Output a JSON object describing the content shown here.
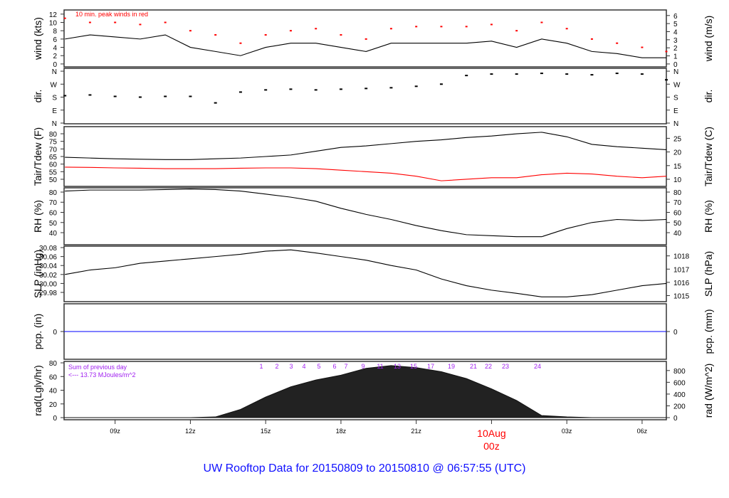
{
  "title": "UW Rooftop Data for 20150809  to  20150810 @ 06:57:55  (UTC)",
  "colors": {
    "line": "#000000",
    "dewpoint": "#ff0000",
    "peak": "#ff0000",
    "pcp": "#0000ff",
    "annot": "#a020f0",
    "title": "#1010ff",
    "date": "#ff0000"
  },
  "chart_data": {
    "type": "line",
    "x_start": "2015-08-09T06:58Z",
    "x_end": "2015-08-10T06:58Z",
    "x_ticks": [
      {
        "t": "2015-08-09T09:00Z",
        "label": "09z"
      },
      {
        "t": "2015-08-09T12:00Z",
        "label": "12z"
      },
      {
        "t": "2015-08-09T15:00Z",
        "label": "15z"
      },
      {
        "t": "2015-08-09T18:00Z",
        "label": "18z"
      },
      {
        "t": "2015-08-09T21:00Z",
        "label": "21z"
      },
      {
        "t": "2015-08-10T00:00Z",
        "label": "00z",
        "date": "10Aug"
      },
      {
        "t": "2015-08-10T03:00Z",
        "label": "03z"
      },
      {
        "t": "2015-08-10T06:00Z",
        "label": "06z"
      }
    ],
    "times": [
      "2015-08-09T07:00Z",
      "2015-08-09T08:00Z",
      "2015-08-09T09:00Z",
      "2015-08-09T10:00Z",
      "2015-08-09T11:00Z",
      "2015-08-09T12:00Z",
      "2015-08-09T13:00Z",
      "2015-08-09T14:00Z",
      "2015-08-09T15:00Z",
      "2015-08-09T16:00Z",
      "2015-08-09T17:00Z",
      "2015-08-09T18:00Z",
      "2015-08-09T19:00Z",
      "2015-08-09T20:00Z",
      "2015-08-09T21:00Z",
      "2015-08-09T22:00Z",
      "2015-08-09T23:00Z",
      "2015-08-10T00:00Z",
      "2015-08-10T01:00Z",
      "2015-08-10T02:00Z",
      "2015-08-10T03:00Z",
      "2015-08-10T04:00Z",
      "2015-08-10T05:00Z",
      "2015-08-10T06:00Z",
      "2015-08-10T06:58Z"
    ],
    "panels": [
      {
        "id": "wind",
        "ylabel": "wind (kts)",
        "ylabel_right": "wind (m/s)",
        "ylim": [
          -0.7,
          13.0
        ],
        "ticks_left": [
          0,
          2,
          4,
          6,
          8,
          10,
          12
        ],
        "ticks_right": [
          0,
          1,
          2,
          3,
          4,
          5,
          6
        ],
        "right_factor": 0.5144,
        "annotation": "10 min. peak winds in red",
        "series": [
          {
            "kind": "line",
            "values": [
              6,
              7,
              6.5,
              6,
              7,
              4,
              3,
              2,
              4,
              5,
              5,
              4,
              3,
              5,
              5,
              5,
              5,
              5.5,
              4,
              6,
              5,
              3,
              2.5,
              1.5,
              1.5
            ]
          },
          {
            "kind": "peak",
            "values": [
              11,
              10,
              10,
              9.5,
              10,
              8,
              7,
              5,
              7,
              8,
              8.5,
              7,
              6,
              8.5,
              9,
              9,
              9,
              9.5,
              8,
              10,
              8.5,
              6,
              5,
              4,
              3
            ]
          }
        ]
      },
      {
        "id": "dir",
        "ylabel": "dir.",
        "ylabel_right": "dir.",
        "ylim": [
          -5,
          380
        ],
        "ticks_left": [
          {
            "v": 0,
            "l": "N"
          },
          {
            "v": 90,
            "l": "E"
          },
          {
            "v": 180,
            "l": "S"
          },
          {
            "v": 270,
            "l": "W"
          },
          {
            "v": 360,
            "l": "N"
          }
        ],
        "ticks_right": [
          {
            "v": 0,
            "l": "N"
          },
          {
            "v": 90,
            "l": "E"
          },
          {
            "v": 180,
            "l": "S"
          },
          {
            "v": 270,
            "l": "W"
          },
          {
            "v": 360,
            "l": "N"
          }
        ],
        "series": [
          {
            "kind": "dots",
            "values": [
              190,
              195,
              185,
              180,
              185,
              185,
              140,
              215,
              230,
              235,
              230,
              235,
              240,
              245,
              255,
              270,
              330,
              340,
              340,
              345,
              340,
              335,
              345,
              340,
              300
            ]
          }
        ]
      },
      {
        "id": "temp",
        "ylabel": "Tair/Tdew (F)",
        "ylabel_right": "Tair/Tdew (C)",
        "ylim": [
          45.3,
          84.7
        ],
        "ticks_left": [
          50,
          55,
          60,
          65,
          70,
          75,
          80
        ],
        "ticks_right": [
          10,
          15,
          20,
          25
        ],
        "right_kind": "c2f",
        "series": [
          {
            "kind": "line",
            "values": [
              64.5,
              64,
              63.5,
              63.2,
              63,
              63,
              63.5,
              64,
              65,
              66,
              68.5,
              71,
              72,
              73.5,
              75,
              76,
              77.5,
              78.5,
              80,
              81,
              78,
              73,
              71.5,
              70.5,
              69.5
            ]
          },
          {
            "kind": "dew",
            "values": [
              58,
              57.8,
              57.5,
              57.3,
              57,
              57,
              57,
              57.3,
              57.5,
              57.5,
              57,
              56,
              55,
              54,
              52,
              49,
              50,
              51,
              51,
              53,
              54,
              53.5,
              52,
              51,
              52
            ]
          }
        ]
      },
      {
        "id": "rh",
        "ylabel": "RH (%)",
        "ylabel_right": "RH (%)",
        "ylim": [
          28.1,
          84.2
        ],
        "ticks_left": [
          40,
          50,
          60,
          70,
          80
        ],
        "ticks_right": [
          40,
          50,
          60,
          70,
          80
        ],
        "right_factor": 1,
        "series": [
          {
            "kind": "line",
            "values": [
              81,
              82,
              82,
              82,
              82.5,
              83,
              82.5,
              81,
              78,
              75,
              71,
              64,
              58,
              53,
              47,
              42,
              38,
              37,
              36,
              36,
              44,
              50,
              53,
              52,
              53
            ]
          }
        ]
      },
      {
        "id": "slp",
        "ylabel": "SLP (inHg)",
        "ylabel_right": "SLP (hPa)",
        "ylim": [
          29.9594,
          30.0832
        ],
        "ticks_left": [
          29.98,
          30.0,
          30.02,
          30.04,
          30.06,
          30.08
        ],
        "ticks_right": [
          1015,
          1016,
          1017,
          1018
        ],
        "right_factor": 33.8639,
        "series": [
          {
            "kind": "line",
            "values": [
              30.02,
              30.03,
              30.035,
              30.045,
              30.05,
              30.055,
              30.06,
              30.065,
              30.072,
              30.075,
              30.068,
              30.06,
              30.052,
              30.04,
              30.03,
              30.01,
              29.995,
              29.985,
              29.978,
              29.97,
              29.97,
              29.975,
              29.985,
              29.995,
              30.0
            ]
          }
        ]
      },
      {
        "id": "pcp",
        "ylabel": "pcp. (in)",
        "ylabel_right": "pcp. (mm)",
        "ylim": [
          -1,
          1
        ],
        "ticks_left": [
          0
        ],
        "ticks_right": [
          0
        ],
        "right_factor": 25.4,
        "series": [
          {
            "kind": "pcp",
            "values": [
              0,
              0,
              0,
              0,
              0,
              0,
              0,
              0,
              0,
              0,
              0,
              0,
              0,
              0,
              0,
              0,
              0,
              0,
              0,
              0,
              0,
              0,
              0,
              0,
              0
            ]
          }
        ]
      },
      {
        "id": "rad",
        "ylabel": "rad(Lgly/hr)",
        "ylabel_right": "rad (W/m^2)",
        "ylim": [
          -3.1,
          82.1
        ],
        "ticks_left": [
          0,
          20,
          40,
          60,
          80
        ],
        "ticks_right": [
          0,
          200,
          400,
          600,
          800
        ],
        "right_factor": 11.63,
        "annotation_lines": [
          "Sum of previous day",
          "<--- 13.73 MJoules/m^2"
        ],
        "hour_labels": [
          "1",
          "2",
          "3",
          "4",
          "5",
          "6",
          "7",
          "9",
          "11",
          "13",
          "15",
          "17",
          "19",
          "21",
          "22",
          "23",
          "24"
        ],
        "series": [
          {
            "kind": "area",
            "values": [
              0,
              0,
              0,
              0,
              0,
              0,
              1,
              12,
              30,
              45,
              55,
              62,
              72,
              76,
              73,
              67,
              57,
              42,
              25,
              3,
              1,
              0,
              0,
              0,
              0
            ]
          }
        ]
      }
    ]
  }
}
